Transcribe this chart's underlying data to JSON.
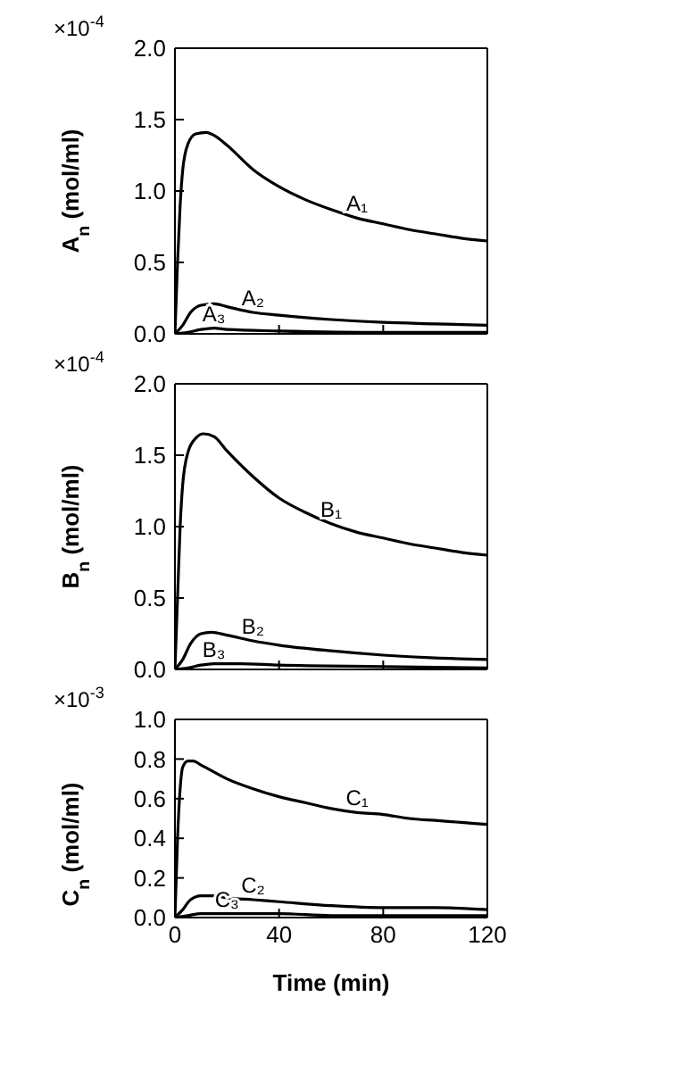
{
  "chart_data": [
    {
      "type": "line",
      "ylabel": "A$_{n}$ (mol/ml)",
      "annotations": [
        "×10$^{-4}$",
        {
          "text": "A₁",
          "x": 70,
          "y": 0.81
        },
        {
          "text": "A₂",
          "x": 30,
          "y": 0.15
        },
        {
          "text": "A₃",
          "x": 15,
          "y": 0.04
        }
      ],
      "xlim": [
        0,
        120
      ],
      "xticks": [
        {
          "value": 0,
          "label": null
        },
        {
          "value": 40,
          "label": null
        },
        {
          "value": 80,
          "label": null
        },
        {
          "value": 120,
          "label": null
        }
      ],
      "ylim": [
        0,
        2
      ],
      "yticks": [
        {
          "value": 0,
          "label": "0.0"
        },
        {
          "value": 0.5,
          "label": "0.5"
        },
        {
          "value": 1,
          "label": "1.0"
        },
        {
          "value": 1.5,
          "label": "1.5"
        },
        {
          "value": 2,
          "label": "2.0"
        }
      ],
      "tick_labels": "y",
      "marker": "none",
      "line_style": "solid",
      "series": [
        {
          "color": "#000000",
          "x": [
            0,
            1,
            2,
            3,
            5,
            8,
            12,
            15,
            20,
            30,
            40,
            50,
            60,
            70,
            80,
            90,
            100,
            110,
            120
          ],
          "values": [
            0,
            0.5,
            0.9,
            1.15,
            1.33,
            1.4,
            1.41,
            1.39,
            1.32,
            1.15,
            1.03,
            0.94,
            0.87,
            0.81,
            0.77,
            0.73,
            0.7,
            0.67,
            0.65
          ]
        },
        {
          "color": "#000000",
          "x": [
            0,
            3,
            6,
            10,
            15,
            20,
            30,
            40,
            60,
            80,
            100,
            120
          ],
          "values": [
            0,
            0.06,
            0.15,
            0.2,
            0.21,
            0.19,
            0.15,
            0.13,
            0.1,
            0.08,
            0.07,
            0.06
          ]
        },
        {
          "color": "#000000",
          "x": [
            0,
            5,
            10,
            15,
            20,
            40,
            80,
            120
          ],
          "values": [
            0,
            0.01,
            0.03,
            0.04,
            0.03,
            0.02,
            0.01,
            0.01
          ]
        }
      ]
    },
    {
      "type": "line",
      "ylabel": "B$_{n}$ (mol/ml)",
      "annotations": [
        "×10$^{-4}$",
        {
          "text": "B₁",
          "x": 60,
          "y": 1.02
        },
        {
          "text": "B₂",
          "x": 30,
          "y": 0.2
        },
        {
          "text": "B₃",
          "x": 15,
          "y": 0.04
        }
      ],
      "xlim": [
        0,
        120
      ],
      "xticks": [
        {
          "value": 0,
          "label": null
        },
        {
          "value": 40,
          "label": null
        },
        {
          "value": 80,
          "label": null
        },
        {
          "value": 120,
          "label": null
        }
      ],
      "ylim": [
        0,
        2
      ],
      "yticks": [
        {
          "value": 0,
          "label": "0.0"
        },
        {
          "value": 0.5,
          "label": "0.5"
        },
        {
          "value": 1,
          "label": "1.0"
        },
        {
          "value": 1.5,
          "label": "1.5"
        },
        {
          "value": 2,
          "label": "2.0"
        }
      ],
      "tick_labels": "y",
      "marker": "none",
      "line_style": "solid",
      "series": [
        {
          "color": "#000000",
          "x": [
            0,
            1,
            2,
            3,
            5,
            8,
            11,
            15,
            20,
            30,
            40,
            50,
            60,
            70,
            80,
            90,
            100,
            110,
            120
          ],
          "values": [
            0,
            0.5,
            1.0,
            1.3,
            1.52,
            1.62,
            1.65,
            1.63,
            1.53,
            1.35,
            1.2,
            1.1,
            1.02,
            0.96,
            0.92,
            0.88,
            0.85,
            0.82,
            0.8
          ]
        },
        {
          "color": "#000000",
          "x": [
            0,
            3,
            6,
            10,
            14,
            20,
            30,
            40,
            60,
            80,
            100,
            120
          ],
          "values": [
            0,
            0.07,
            0.18,
            0.25,
            0.26,
            0.24,
            0.2,
            0.17,
            0.13,
            0.1,
            0.08,
            0.07
          ]
        },
        {
          "color": "#000000",
          "x": [
            0,
            5,
            10,
            15,
            25,
            40,
            80,
            120
          ],
          "values": [
            0,
            0.01,
            0.03,
            0.04,
            0.04,
            0.03,
            0.02,
            0.01
          ]
        }
      ]
    },
    {
      "type": "line",
      "xlabel": "Time (min)",
      "ylabel": "C$_{n}$ (mol/ml)",
      "annotations": [
        "×10$^{-3}$",
        {
          "text": "C₁",
          "x": 70,
          "y": 0.53
        },
        {
          "text": "C₂",
          "x": 30,
          "y": 0.09
        },
        {
          "text": "C₃",
          "x": 20,
          "y": 0.02
        }
      ],
      "xlim": [
        0,
        120
      ],
      "xticks": [
        0,
        40,
        80,
        120
      ],
      "ylim": [
        0,
        1
      ],
      "yticks": [
        {
          "value": 0,
          "label": "0.0"
        },
        {
          "value": 0.2,
          "label": "0.2"
        },
        {
          "value": 0.4,
          "label": "0.4"
        },
        {
          "value": 0.6,
          "label": "0.6"
        },
        {
          "value": 0.8,
          "label": "0.8"
        },
        {
          "value": 1,
          "label": "1.0"
        }
      ],
      "marker": "none",
      "line_style": "solid",
      "series": [
        {
          "color": "#000000",
          "x": [
            0,
            1,
            2,
            3,
            5,
            7,
            10,
            20,
            30,
            40,
            50,
            60,
            70,
            80,
            90,
            100,
            110,
            120
          ],
          "values": [
            0,
            0.4,
            0.65,
            0.76,
            0.79,
            0.79,
            0.77,
            0.7,
            0.65,
            0.61,
            0.58,
            0.55,
            0.53,
            0.52,
            0.5,
            0.49,
            0.48,
            0.47
          ]
        },
        {
          "color": "#000000",
          "x": [
            0,
            3,
            6,
            10,
            15,
            20,
            30,
            40,
            60,
            80,
            100,
            120
          ],
          "values": [
            0,
            0.04,
            0.09,
            0.11,
            0.11,
            0.1,
            0.09,
            0.08,
            0.06,
            0.05,
            0.05,
            0.04
          ]
        },
        {
          "color": "#000000",
          "x": [
            0,
            5,
            10,
            20,
            40,
            60,
            120
          ],
          "values": [
            0,
            0.01,
            0.02,
            0.02,
            0.02,
            0.01,
            0.01
          ]
        }
      ]
    }
  ]
}
